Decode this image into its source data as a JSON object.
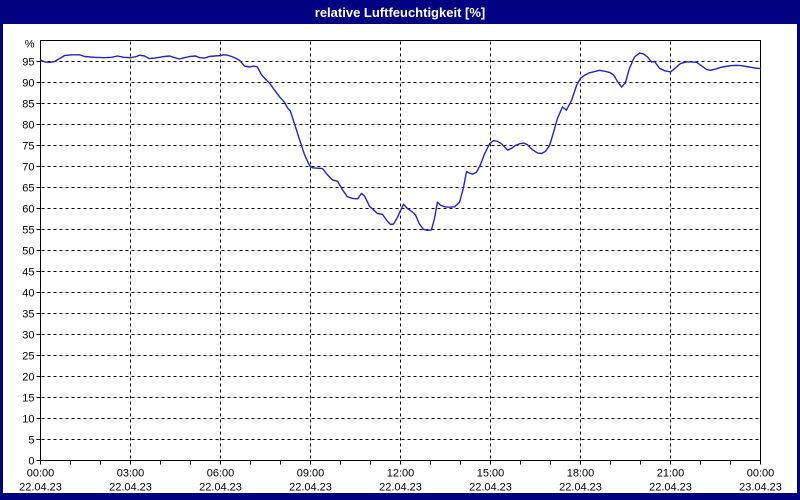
{
  "window": {
    "title": "relative Luftfeuchtigkeit [%]"
  },
  "colors": {
    "frame": "#000080",
    "title_text": "#ffffff",
    "plot_background": "#ffffff",
    "grid": "#000000",
    "axis_text": "#000000",
    "line": "#2222cc"
  },
  "chart_data": {
    "type": "line",
    "title": "relative Luftfeuchtigkeit [%]",
    "ylabel": "%",
    "xlabel": "",
    "ylim": [
      0,
      100
    ],
    "yticks": [
      0,
      5,
      10,
      15,
      20,
      25,
      30,
      35,
      40,
      45,
      50,
      55,
      60,
      65,
      70,
      75,
      80,
      85,
      90,
      95
    ],
    "grid": "dashed black, horizontal every 5 %, vertical every 3 h",
    "legend": "none",
    "xlim_hours": [
      0,
      24
    ],
    "minor_xtick_every_hours": 1,
    "xticks": [
      {
        "hour": 0,
        "time": "00:00",
        "date": "22.04.23"
      },
      {
        "hour": 3,
        "time": "03:00",
        "date": "22.04.23"
      },
      {
        "hour": 6,
        "time": "06:00",
        "date": "22.04.23"
      },
      {
        "hour": 9,
        "time": "09:00",
        "date": "22.04.23"
      },
      {
        "hour": 12,
        "time": "12:00",
        "date": "22.04.23"
      },
      {
        "hour": 15,
        "time": "15:00",
        "date": "22.04.23"
      },
      {
        "hour": 18,
        "time": "18:00",
        "date": "22.04.23"
      },
      {
        "hour": 21,
        "time": "21:00",
        "date": "22.04.23"
      },
      {
        "hour": 24,
        "time": "00:00",
        "date": "23.04.23"
      }
    ],
    "series": [
      {
        "name": "relative Luftfeuchtigkeit",
        "color": "#2222cc",
        "points": [
          [
            0,
            95.4
          ],
          [
            0.13,
            94.9
          ],
          [
            0.3,
            94.8
          ],
          [
            0.47,
            95
          ],
          [
            0.63,
            95.7
          ],
          [
            0.8,
            96.4
          ],
          [
            1.03,
            96.6
          ],
          [
            1.3,
            96.6
          ],
          [
            1.47,
            96.2
          ],
          [
            1.8,
            96
          ],
          [
            2.13,
            95.9
          ],
          [
            2.37,
            96
          ],
          [
            2.57,
            96.3
          ],
          [
            2.77,
            96
          ],
          [
            3,
            95.9
          ],
          [
            3.2,
            96.2
          ],
          [
            3.3,
            96.5
          ],
          [
            3.47,
            96.3
          ],
          [
            3.63,
            95.7
          ],
          [
            3.8,
            95.8
          ],
          [
            3.97,
            96
          ],
          [
            4.13,
            96.2
          ],
          [
            4.3,
            96.3
          ],
          [
            4.47,
            95.9
          ],
          [
            4.63,
            95.6
          ],
          [
            4.8,
            95.9
          ],
          [
            4.97,
            96.2
          ],
          [
            5.17,
            96.3
          ],
          [
            5.3,
            95.9
          ],
          [
            5.47,
            95.8
          ],
          [
            5.63,
            96.2
          ],
          [
            5.8,
            96.3
          ],
          [
            6,
            96.4
          ],
          [
            6.1,
            96.6
          ],
          [
            6.23,
            96.5
          ],
          [
            6.37,
            96.2
          ],
          [
            6.5,
            95.8
          ],
          [
            6.63,
            95.3
          ],
          [
            6.8,
            93.9
          ],
          [
            6.97,
            93.7
          ],
          [
            7.1,
            93.9
          ],
          [
            7.23,
            93.7
          ],
          [
            7.37,
            91.8
          ],
          [
            7.5,
            90.8
          ],
          [
            7.63,
            89.9
          ],
          [
            7.8,
            88.2
          ],
          [
            7.97,
            86.6
          ],
          [
            8.13,
            85.3
          ],
          [
            8.23,
            84
          ],
          [
            8.33,
            83.2
          ],
          [
            8.47,
            80.1
          ],
          [
            8.63,
            76.5
          ],
          [
            8.8,
            72.8
          ],
          [
            8.97,
            70.2
          ],
          [
            9.07,
            69.7
          ],
          [
            9.23,
            69.6
          ],
          [
            9.4,
            69.5
          ],
          [
            9.57,
            68
          ],
          [
            9.73,
            66.8
          ],
          [
            9.9,
            66.5
          ],
          [
            10.07,
            64.4
          ],
          [
            10.23,
            62.8
          ],
          [
            10.4,
            62.4
          ],
          [
            10.57,
            62.3
          ],
          [
            10.7,
            63.6
          ],
          [
            10.8,
            63
          ],
          [
            10.97,
            60.5
          ],
          [
            11.1,
            59.7
          ],
          [
            11.23,
            58.8
          ],
          [
            11.4,
            58.6
          ],
          [
            11.57,
            56.9
          ],
          [
            11.67,
            56.2
          ],
          [
            11.77,
            56.3
          ],
          [
            11.9,
            57.9
          ],
          [
            12,
            59.5
          ],
          [
            12.1,
            61
          ],
          [
            12.23,
            60
          ],
          [
            12.37,
            59.3
          ],
          [
            12.5,
            58.5
          ],
          [
            12.63,
            56.3
          ],
          [
            12.77,
            55
          ],
          [
            12.9,
            54.8
          ],
          [
            13.03,
            54.9
          ],
          [
            13.13,
            57.5
          ],
          [
            13.23,
            61.5
          ],
          [
            13.33,
            60.8
          ],
          [
            13.47,
            60.4
          ],
          [
            13.63,
            60.3
          ],
          [
            13.8,
            60.4
          ],
          [
            13.97,
            61.5
          ],
          [
            14.1,
            65
          ],
          [
            14.2,
            68.8
          ],
          [
            14.3,
            68.4
          ],
          [
            14.4,
            68.2
          ],
          [
            14.53,
            68.6
          ],
          [
            14.67,
            70.5
          ],
          [
            14.8,
            73
          ],
          [
            14.97,
            75.4
          ],
          [
            15.1,
            76.2
          ],
          [
            15.23,
            76
          ],
          [
            15.37,
            75.4
          ],
          [
            15.57,
            73.9
          ],
          [
            15.7,
            74.3
          ],
          [
            15.83,
            75
          ],
          [
            15.97,
            75.4
          ],
          [
            16.1,
            75.6
          ],
          [
            16.23,
            75.2
          ],
          [
            16.4,
            74
          ],
          [
            16.57,
            73.2
          ],
          [
            16.7,
            73.1
          ],
          [
            16.83,
            73.6
          ],
          [
            16.97,
            75
          ],
          [
            17.07,
            77.4
          ],
          [
            17.23,
            81.4
          ],
          [
            17.4,
            84.2
          ],
          [
            17.53,
            83.4
          ],
          [
            17.7,
            85.7
          ],
          [
            17.87,
            89.3
          ],
          [
            18,
            91
          ],
          [
            18.13,
            91.7
          ],
          [
            18.3,
            92.3
          ],
          [
            18.47,
            92.6
          ],
          [
            18.63,
            92.9
          ],
          [
            18.8,
            92.7
          ],
          [
            18.97,
            92.4
          ],
          [
            19.1,
            91.8
          ],
          [
            19.23,
            90.3
          ],
          [
            19.37,
            88.9
          ],
          [
            19.5,
            90
          ],
          [
            19.63,
            93.3
          ],
          [
            19.8,
            96.1
          ],
          [
            19.97,
            97
          ],
          [
            20.1,
            96.8
          ],
          [
            20.23,
            96.1
          ],
          [
            20.37,
            94.9
          ],
          [
            20.47,
            95
          ],
          [
            20.63,
            93.4
          ],
          [
            20.8,
            92.8
          ],
          [
            21,
            92.5
          ],
          [
            21.17,
            93.5
          ],
          [
            21.33,
            94.5
          ],
          [
            21.53,
            94.9
          ],
          [
            21.7,
            94.9
          ],
          [
            21.87,
            94.8
          ],
          [
            22.03,
            94
          ],
          [
            22.2,
            93.1
          ],
          [
            22.33,
            92.9
          ],
          [
            22.5,
            93.2
          ],
          [
            22.67,
            93.6
          ],
          [
            22.83,
            93.8
          ],
          [
            23,
            94
          ],
          [
            23.2,
            94.1
          ],
          [
            23.37,
            94
          ],
          [
            23.53,
            93.8
          ],
          [
            23.7,
            93.6
          ],
          [
            23.87,
            93.4
          ],
          [
            24,
            93.3
          ]
        ]
      }
    ]
  }
}
